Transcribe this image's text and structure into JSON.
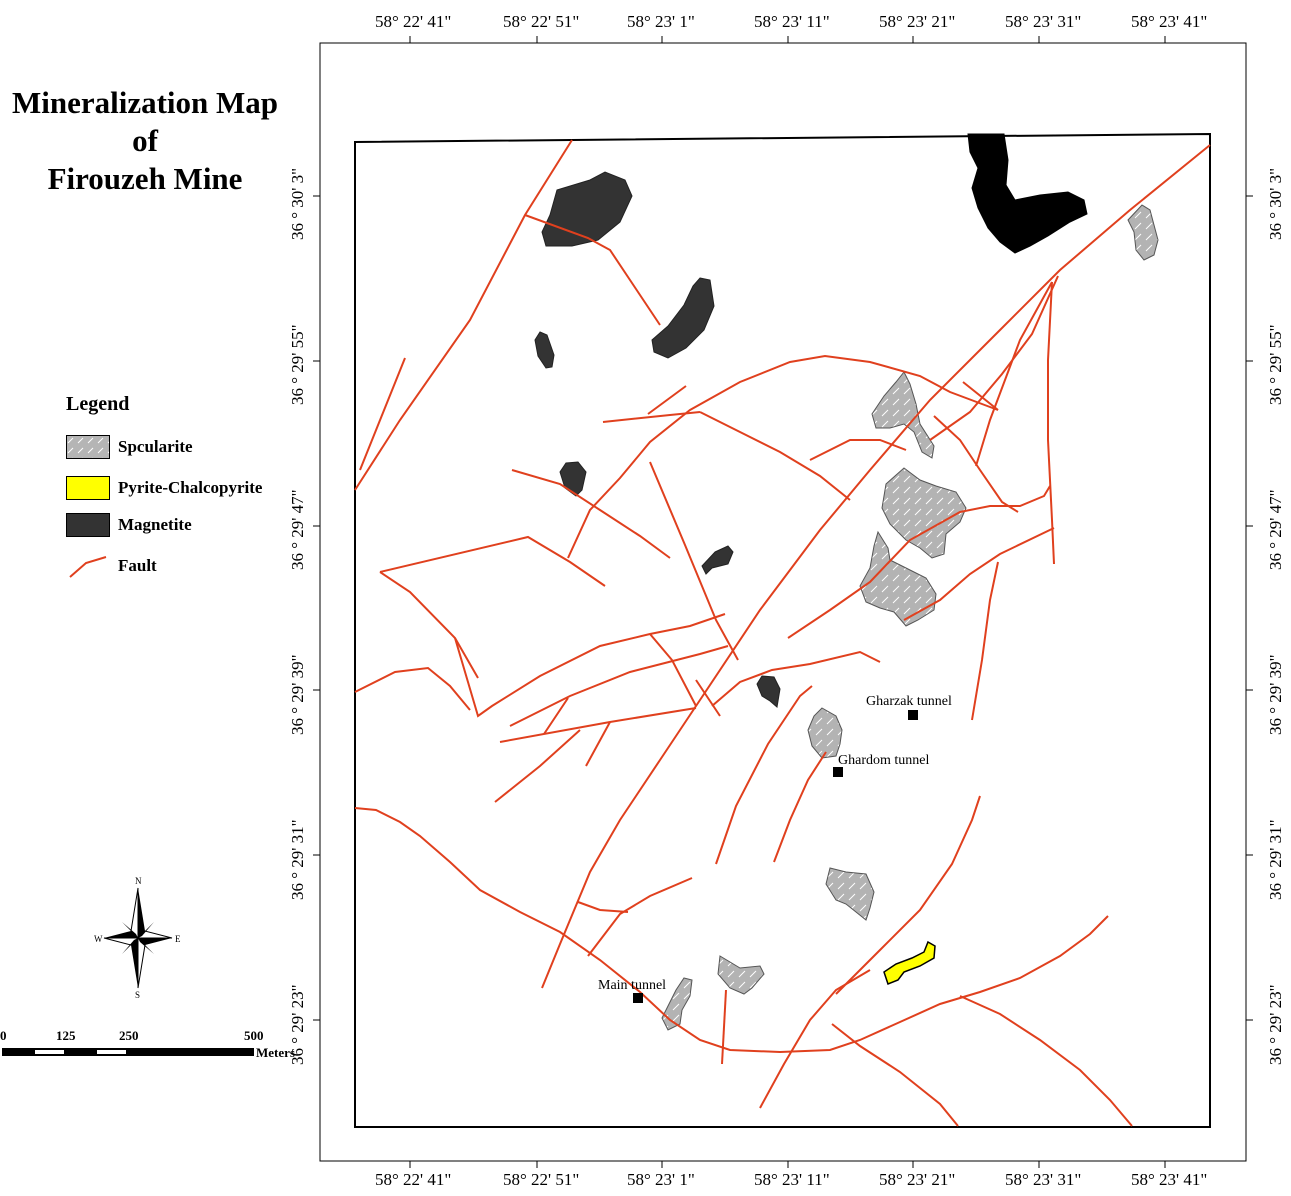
{
  "title_line1": "Mineralization Map of",
  "title_line2": "Firouzeh Mine",
  "legend": {
    "title": "Legend",
    "items": [
      {
        "label": "Spcularite",
        "color": "#b5b5b5"
      },
      {
        "label": "Pyrite-Chalcopyrite",
        "color": "#ffff00"
      },
      {
        "label": "Magnetite",
        "color": "#333333"
      },
      {
        "label": "Fault",
        "color": "#e0401e"
      }
    ]
  },
  "longitudes": [
    "58° 22' 41\"",
    "58° 22' 51\"",
    "58° 23' 1\"",
    "58° 23' 11\"",
    "58° 23' 21\"",
    "58° 23' 31\"",
    "58° 23' 41\""
  ],
  "latitudes": [
    "36 ° 30' 3\"",
    "36 ° 29' 55\"",
    "36 ° 29' 47\"",
    "36 ° 29' 39\"",
    "36 ° 29' 31\"",
    "36 ° 29' 23\""
  ],
  "tunnels": {
    "gharzak": "Gharzak tunnel",
    "ghardom": "Ghardom tunnel",
    "main": "Main tunnel"
  },
  "compass": {
    "n": "N",
    "s": "S",
    "e": "E",
    "w": "W"
  },
  "scale": {
    "ticks": [
      "0",
      "125",
      "250",
      "500"
    ],
    "unit": "Meters"
  }
}
